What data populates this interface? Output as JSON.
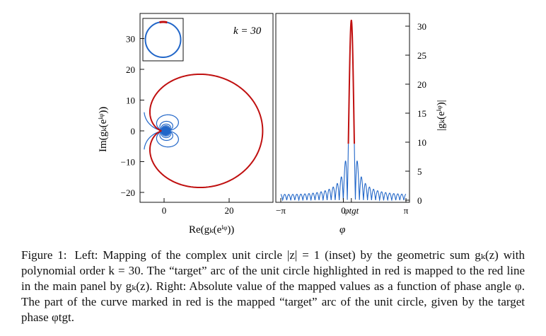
{
  "figure": {
    "left_panel": {
      "x_ticks": [
        "0",
        "20"
      ],
      "y_ticks": [
        "30",
        "20",
        "10",
        "0",
        "−10",
        "−20"
      ],
      "xlabel": "Re(gₖ(eⁱᵠ))",
      "ylabel": "Im(gₖ(eⁱᵠ))",
      "annotation": "k = 30"
    },
    "right_panel": {
      "x_ticks": [
        "−π",
        "0",
        "φtgt",
        "π"
      ],
      "y_ticks": [
        "30",
        "25",
        "20",
        "15",
        "10",
        "5",
        "0"
      ],
      "xlabel": "φ",
      "ylabel": "|gₖ(eⁱᵠ)|"
    },
    "colors": {
      "blue": "#2166c8",
      "red": "#c01010",
      "axes": "#111111"
    }
  },
  "chart_data": [
    {
      "type": "line",
      "title": "",
      "xlabel": "Re(g_k(e^{iφ}))",
      "ylabel": "Im(g_k(e^{iφ}))",
      "xlim": [
        -7,
        33
      ],
      "ylim": [
        -24,
        38
      ],
      "k": 30,
      "phi_tgt": 0.4,
      "target_halfwidth": 0.15,
      "series": [
        {
          "color": "#2166c8",
          "description_of_curve": "g_k(e^{iφ}) for φ outside target arc"
        },
        {
          "color": "#c01010",
          "description_of_curve": "g_k(e^{iφ}) on target arc"
        }
      ],
      "inset": {
        "type": "line",
        "curve": "unit circle |z|=1",
        "highlight_color": "#c01010"
      }
    },
    {
      "type": "line",
      "title": "",
      "xlabel": "φ",
      "ylabel": "|g_k(e^{iφ})|",
      "xlim": [
        -3.14159,
        3.14159
      ],
      "ylim": [
        -1,
        33
      ],
      "peak_value": 31,
      "phi_tgt": 0.4,
      "y_ticks": [
        0,
        5,
        10,
        15,
        20,
        25,
        30
      ],
      "x_ticks": [
        "−π",
        "0",
        "φtgt",
        "π"
      ]
    }
  ],
  "caption": {
    "label": "Figure 1:",
    "text": "Left: Mapping of the complex unit circle |z| = 1 (inset) by the geometric sum gₖ(z) with polynomial order k = 30. The “target” arc of the unit circle highlighted in red is mapped to the red line in the main panel by gₖ(z). Right: Absolute value of the mapped values as a function of phase angle φ. The part of the curve marked in red is the mapped “target” arc of the unit circle, given by the target phase φtgt."
  }
}
